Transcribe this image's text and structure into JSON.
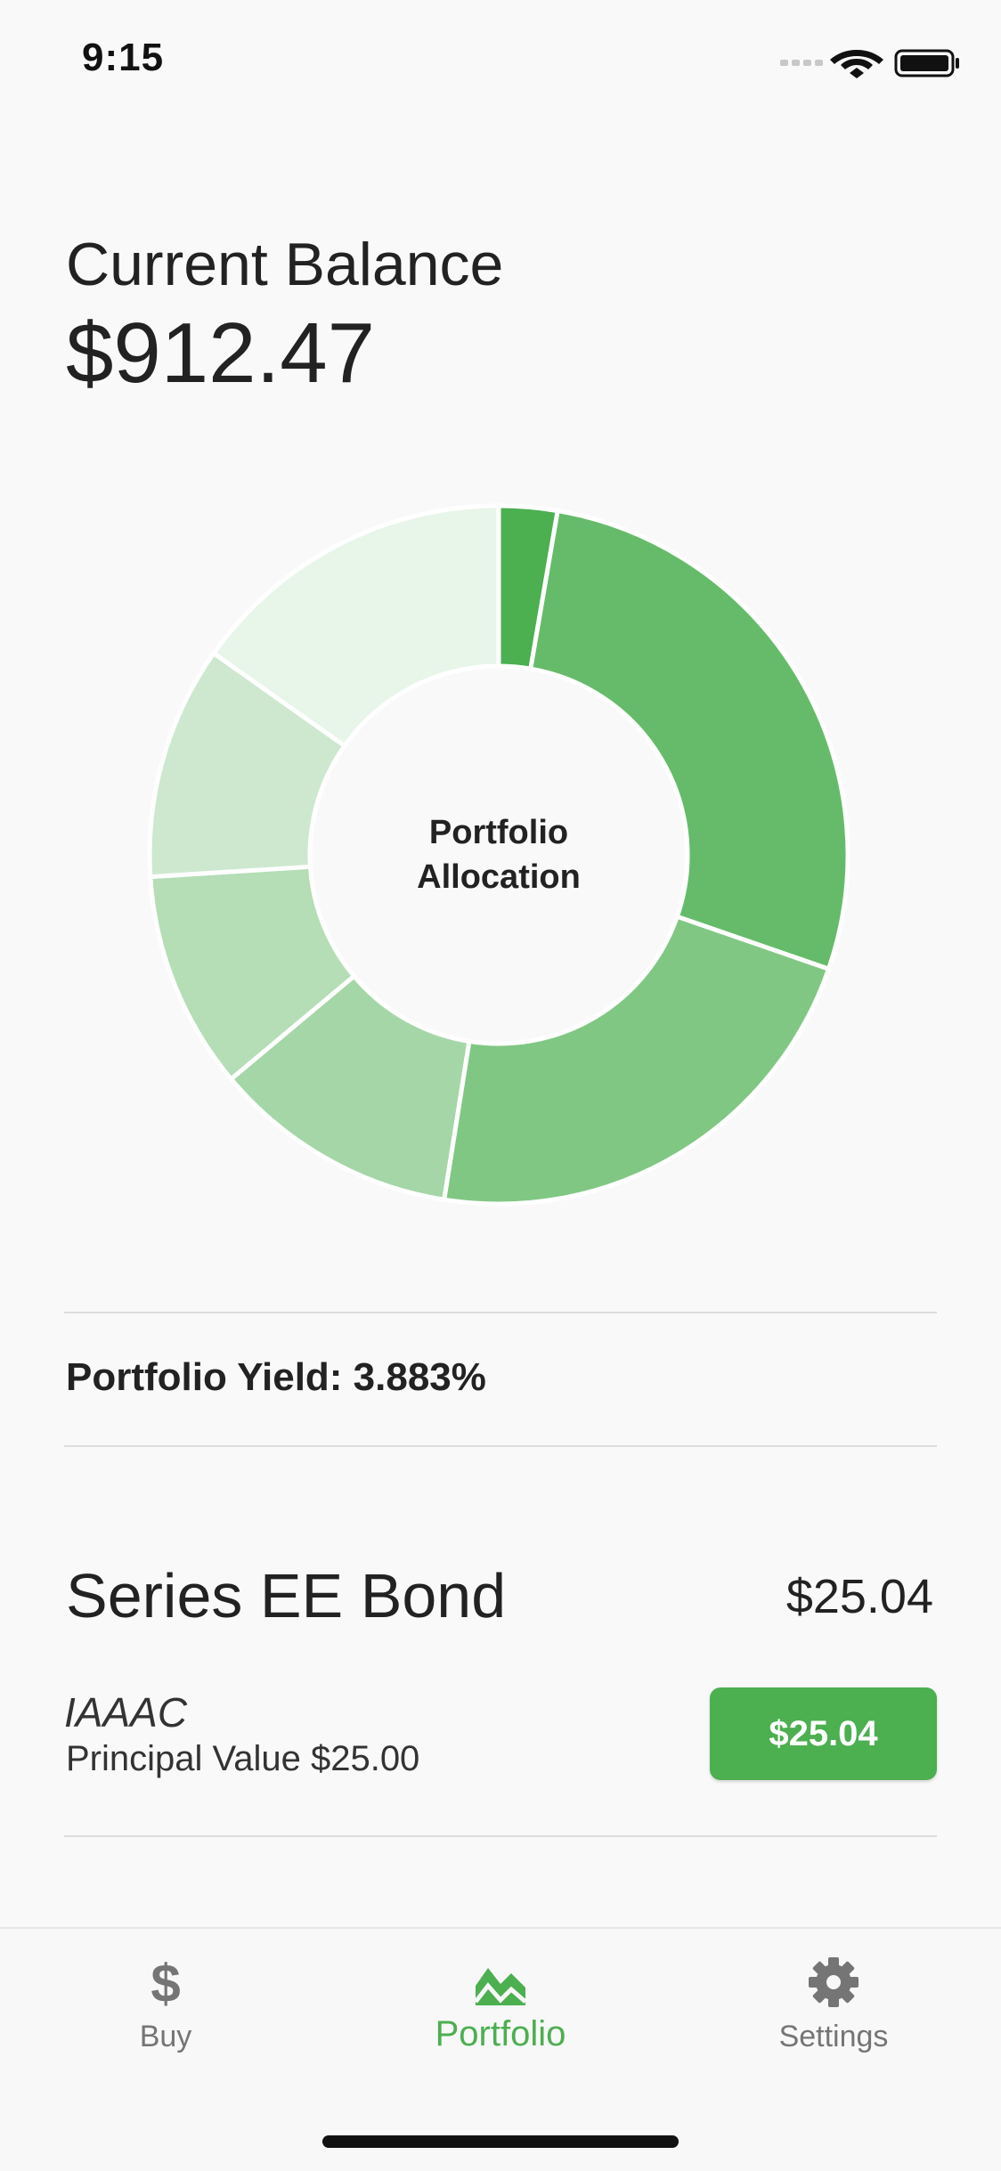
{
  "status_bar": {
    "time": "9:15"
  },
  "balance": {
    "label": "Current Balance",
    "value": "$912.47"
  },
  "chart_data": {
    "type": "pie",
    "style": "donut",
    "title": "Portfolio Allocation",
    "title_lines": [
      "Portfolio",
      "Allocation"
    ],
    "slices": [
      {
        "percent": 2.7,
        "color": "#4caf50"
      },
      {
        "percent": 27.6,
        "color": "#66bb6a"
      },
      {
        "percent": 22.2,
        "color": "#81c784"
      },
      {
        "percent": 11.4,
        "color": "#a5d6a7"
      },
      {
        "percent": 10.1,
        "color": "#b5ddb6"
      },
      {
        "percent": 10.8,
        "color": "#cde8ce"
      },
      {
        "percent": 15.2,
        "color": "#e8f5e9"
      }
    ]
  },
  "yield": {
    "text": "Portfolio Yield: 3.883%"
  },
  "bond": {
    "name": "Series EE Bond",
    "value": "$25.04",
    "code": "IAAAC",
    "principal": "Principal Value $25.00",
    "button_label": "$25.04"
  },
  "tabs": [
    {
      "label": "Buy",
      "icon": "dollar-icon",
      "active": false
    },
    {
      "label": "Portfolio",
      "icon": "chart-icon",
      "active": true
    },
    {
      "label": "Settings",
      "icon": "gear-icon",
      "active": false
    }
  ],
  "colors": {
    "accent": "#4caf50",
    "inactive": "#757575",
    "background": "#f9f9f9"
  }
}
